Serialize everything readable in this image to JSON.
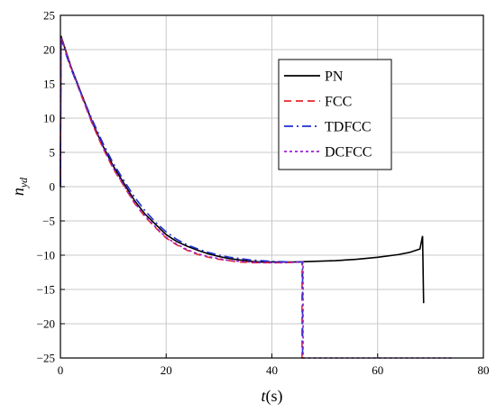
{
  "chart_data": {
    "type": "line",
    "title": "",
    "xlabel": {
      "italic": "t",
      "rest": "(s)"
    },
    "ylabel": {
      "italic": "n",
      "sub": "yd"
    },
    "xlim": [
      0,
      80
    ],
    "ylim": [
      -25,
      25
    ],
    "xticks": [
      0,
      20,
      40,
      60,
      80
    ],
    "yticks": [
      -25,
      -20,
      -15,
      -10,
      -5,
      0,
      5,
      10,
      15,
      20,
      25
    ],
    "grid": true,
    "legend_position": "top-right",
    "series": [
      {
        "name": "PN",
        "color": "#000000",
        "dash": "solid",
        "points": [
          [
            0,
            0
          ],
          [
            0.1,
            22
          ],
          [
            2,
            17.5
          ],
          [
            4,
            13.5
          ],
          [
            6,
            9.5
          ],
          [
            8,
            6
          ],
          [
            10,
            3
          ],
          [
            12,
            0.5
          ],
          [
            14,
            -2
          ],
          [
            16,
            -4
          ],
          [
            18,
            -5.5
          ],
          [
            20,
            -7
          ],
          [
            22,
            -8
          ],
          [
            24,
            -8.7
          ],
          [
            26,
            -9.3
          ],
          [
            28,
            -9.8
          ],
          [
            30,
            -10.2
          ],
          [
            32,
            -10.5
          ],
          [
            34,
            -10.7
          ],
          [
            36,
            -10.9
          ],
          [
            38,
            -11
          ],
          [
            40,
            -11
          ],
          [
            44,
            -11
          ],
          [
            48,
            -10.9
          ],
          [
            52,
            -10.8
          ],
          [
            56,
            -10.6
          ],
          [
            60,
            -10.3
          ],
          [
            64,
            -9.9
          ],
          [
            66,
            -9.6
          ],
          [
            68,
            -9.1
          ],
          [
            68.5,
            -7.2
          ],
          [
            68.7,
            -17
          ]
        ]
      },
      {
        "name": "FCC",
        "color": "#e8262a",
        "dash": "8,5",
        "points": [
          [
            0,
            0
          ],
          [
            0.1,
            21.8
          ],
          [
            2,
            17.3
          ],
          [
            4,
            13.2
          ],
          [
            6,
            9.2
          ],
          [
            8,
            5.7
          ],
          [
            10,
            2.6
          ],
          [
            12,
            0.1
          ],
          [
            14,
            -2.4
          ],
          [
            16,
            -4.4
          ],
          [
            18,
            -6
          ],
          [
            20,
            -7.5
          ],
          [
            22,
            -8.5
          ],
          [
            24,
            -9.3
          ],
          [
            26,
            -9.9
          ],
          [
            28,
            -10.3
          ],
          [
            30,
            -10.6
          ],
          [
            32,
            -10.8
          ],
          [
            34,
            -11
          ],
          [
            36,
            -11.1
          ],
          [
            38,
            -11.1
          ],
          [
            40,
            -11.1
          ],
          [
            42,
            -11.1
          ],
          [
            44,
            -11.05
          ],
          [
            45.7,
            -11
          ],
          [
            45.7,
            -25
          ],
          [
            46,
            -25
          ]
        ]
      },
      {
        "name": "TDFCC",
        "color": "#1f2fd1",
        "dash": "10,4,2,4",
        "points": [
          [
            0,
            0
          ],
          [
            0.1,
            21.5
          ],
          [
            2,
            17.2
          ],
          [
            4,
            13.4
          ],
          [
            6,
            9.8
          ],
          [
            8,
            6.4
          ],
          [
            10,
            3.4
          ],
          [
            12,
            0.9
          ],
          [
            14,
            -1.5
          ],
          [
            16,
            -3.5
          ],
          [
            18,
            -5.2
          ],
          [
            20,
            -6.6
          ],
          [
            22,
            -7.7
          ],
          [
            24,
            -8.5
          ],
          [
            26,
            -9.1
          ],
          [
            28,
            -9.6
          ],
          [
            30,
            -10
          ],
          [
            32,
            -10.3
          ],
          [
            34,
            -10.5
          ],
          [
            36,
            -10.7
          ],
          [
            38,
            -10.8
          ],
          [
            40,
            -10.9
          ],
          [
            42,
            -10.95
          ],
          [
            44,
            -11
          ],
          [
            45.8,
            -11
          ],
          [
            45.8,
            -25
          ],
          [
            46,
            -25
          ]
        ]
      },
      {
        "name": "DCFCC",
        "color": "#9b1fd6",
        "dash": "3,3",
        "points": [
          [
            0,
            0
          ],
          [
            0.1,
            21.9
          ],
          [
            2,
            17.4
          ],
          [
            4,
            13.3
          ],
          [
            6,
            9.3
          ],
          [
            8,
            5.8
          ],
          [
            10,
            2.7
          ],
          [
            12,
            0.2
          ],
          [
            14,
            -2.3
          ],
          [
            16,
            -4.3
          ],
          [
            18,
            -5.9
          ],
          [
            20,
            -7.4
          ],
          [
            22,
            -8.4
          ],
          [
            24,
            -9.2
          ],
          [
            26,
            -9.8
          ],
          [
            28,
            -10.2
          ],
          [
            30,
            -10.5
          ],
          [
            32,
            -10.8
          ],
          [
            34,
            -10.9
          ],
          [
            36,
            -11
          ],
          [
            38,
            -11.1
          ],
          [
            40,
            -11.1
          ],
          [
            42,
            -11.1
          ],
          [
            44,
            -11.05
          ],
          [
            45.9,
            -11
          ],
          [
            45.9,
            -25
          ],
          [
            74,
            -25
          ]
        ]
      }
    ]
  }
}
